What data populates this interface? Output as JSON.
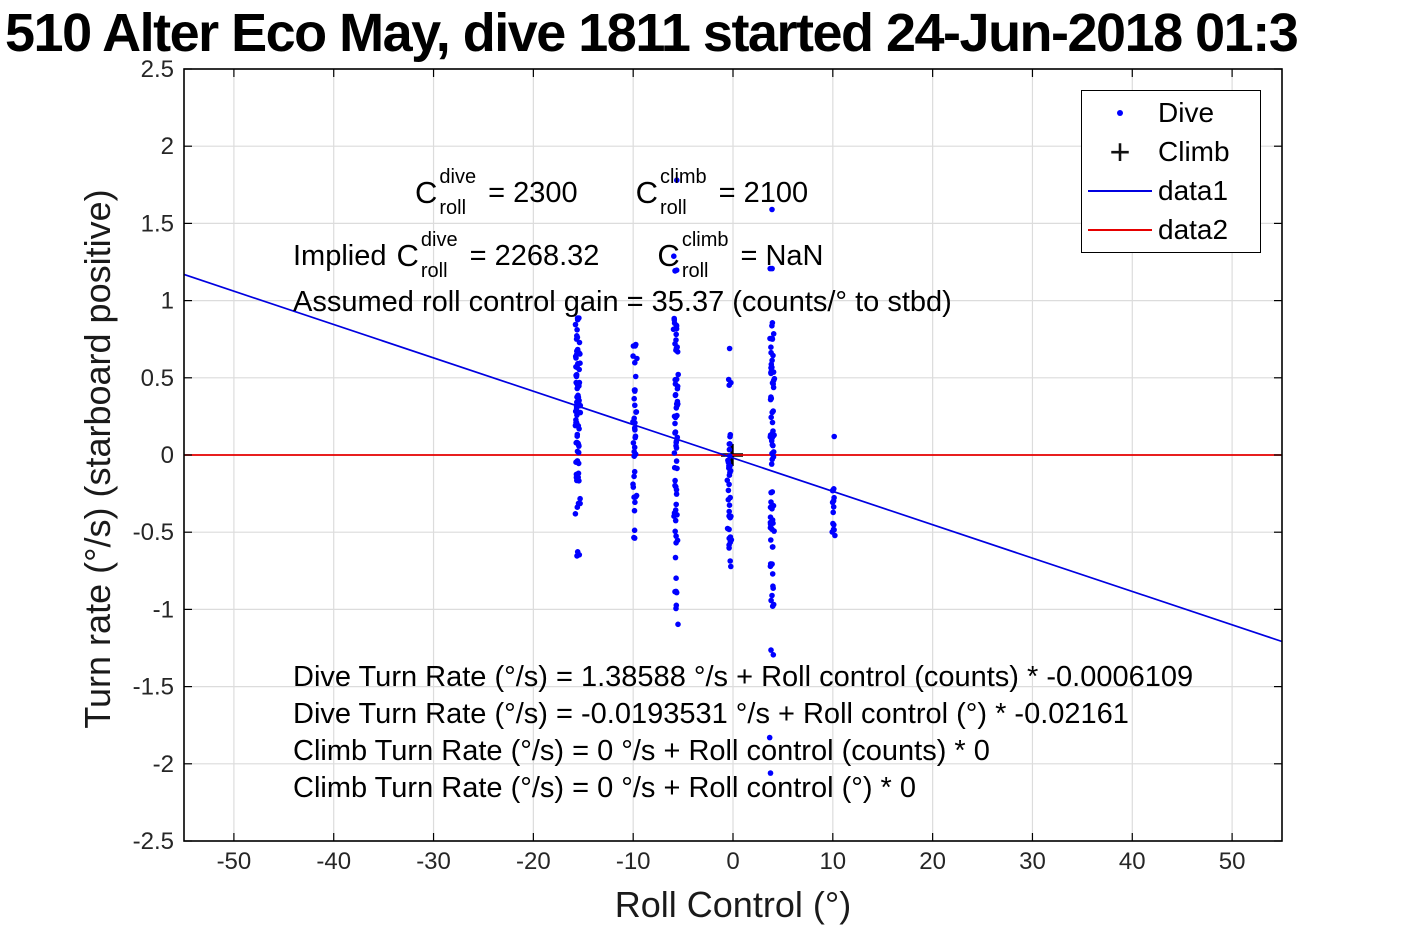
{
  "title": "510 Alter Eco May, dive 1811 started 24-Jun-2018 01:3",
  "axes": {
    "xlabel": "Roll Control (°)",
    "ylabel": "Turn rate (°/s) (starboard positive)"
  },
  "legend": {
    "items": [
      {
        "marker": "dot",
        "label": "Dive"
      },
      {
        "marker": "plus",
        "glyph": "+",
        "label": "Climb"
      },
      {
        "marker": "line-blue",
        "label": "data1"
      },
      {
        "marker": "line-red",
        "label": "data2"
      }
    ]
  },
  "annotations": {
    "coef_row1": {
      "term1": {
        "base": "C",
        "sup": "dive",
        "sub": "roll",
        "value": "= 2300"
      },
      "term2": {
        "base": "C",
        "sup": "climb",
        "sub": "roll",
        "value": "= 2100"
      }
    },
    "coef_row2": {
      "prefix": "Implied",
      "term1": {
        "base": "C",
        "sup": "dive",
        "sub": "roll",
        "value": "= 2268.32"
      },
      "term2": {
        "base": "C",
        "sup": "climb",
        "sub": "roll",
        "value": "= NaN"
      }
    },
    "gain_line": "Assumed roll control gain = 35.37 (counts/° to stbd)"
  },
  "fit_lines": [
    "Dive Turn Rate (°/s) = 1.38588 °/s + Roll control (counts) * -0.0006109",
    "Dive Turn Rate (°/s) = -0.0193531 °/s + Roll control (°) * -0.02161",
    "Climb Turn Rate (°/s) = 0 °/s + Roll control (counts) * 0",
    "Climb Turn Rate (°/s) = 0 °/s + Roll control (°) * 0"
  ],
  "colors": {
    "dive_marker": "#0000ff",
    "climb_marker": "#000000",
    "data1_line": "#0000e0",
    "data2_line": "#e60000",
    "grid": "#dcdcdc",
    "axis": "#000000",
    "tick_label": "#262626",
    "background": "#ffffff"
  },
  "chart_data": {
    "type": "scatter",
    "title": "510 Alter Eco May, dive 1811 started 24-Jun-2018 01:3",
    "xlabel": "Roll Control (°)",
    "ylabel": "Turn rate (°/s) (starboard positive)",
    "xlim": [
      -55,
      55
    ],
    "ylim": [
      -2.5,
      2.5
    ],
    "grid": true,
    "x_tick_values": [
      -50,
      -40,
      -30,
      -20,
      -10,
      0,
      10,
      20,
      30,
      40,
      50
    ],
    "x_tick_labels": [
      "-50",
      "-40",
      "-30",
      "-20",
      "-10",
      "0",
      "10",
      "20",
      "30",
      "40",
      "50"
    ],
    "y_tick_values": [
      -2.5,
      -2,
      -1.5,
      -1,
      -0.5,
      0,
      0.5,
      1,
      1.5,
      2,
      2.5
    ],
    "y_tick_labels": [
      "-2.5",
      "-2",
      "-1.5",
      "-1",
      "-0.5",
      "0",
      "0.5",
      "1",
      "1.5",
      "2",
      "2.5"
    ],
    "series": [
      {
        "name": "Dive",
        "type": "scatter",
        "marker": "dot",
        "color": "#0000ff",
        "clusters": [
          {
            "x": -15.55,
            "jitter": 0.16,
            "segments": [
              [
                0.9,
                0.7,
                9
              ],
              [
                0.7,
                0.42,
                22
              ],
              [
                0.42,
                0.15,
                22
              ],
              [
                0.15,
                -0.18,
                19
              ],
              [
                -0.25,
                -0.45,
                5
              ],
              [
                -0.54,
                -0.66,
                3
              ]
            ]
          },
          {
            "x": -9.85,
            "jitter": 0.13,
            "segments": [
              [
                0.73,
                0.5,
                7
              ],
              [
                0.5,
                0.15,
                12
              ],
              [
                0.15,
                -0.15,
                9
              ],
              [
                -0.15,
                -0.38,
                7
              ],
              [
                -0.45,
                -0.56,
                3
              ]
            ]
          },
          {
            "x": -5.7,
            "jitter": 0.14,
            "segments": [
              [
                1.78,
                1.78,
                1
              ],
              [
                1.42,
                1.05,
                4
              ],
              [
                0.9,
                0.55,
                14
              ],
              [
                0.55,
                0.2,
                17
              ],
              [
                0.2,
                -0.2,
                14
              ],
              [
                -0.2,
                -0.6,
                14
              ],
              [
                -0.65,
                -1.1,
                8
              ]
            ]
          },
          {
            "x": -0.35,
            "jitter": 0.12,
            "segments": [
              [
                0.69,
                0.69,
                1
              ],
              [
                0.5,
                0.33,
                3
              ],
              [
                0.17,
                -0.05,
                8
              ],
              [
                -0.05,
                -0.35,
                12
              ],
              [
                -0.35,
                -0.62,
                12
              ],
              [
                -0.68,
                -0.76,
                2
              ]
            ]
          },
          {
            "x": 3.9,
            "jitter": 0.14,
            "segments": [
              [
                1.59,
                1.59,
                1
              ],
              [
                1.32,
                1.18,
                2
              ],
              [
                0.88,
                0.55,
                14
              ],
              [
                0.55,
                0.15,
                17
              ],
              [
                0.15,
                -0.25,
                16
              ],
              [
                -0.25,
                -0.65,
                16
              ],
              [
                -0.7,
                -1.07,
                10
              ],
              [
                -1.25,
                -1.33,
                2
              ],
              [
                -1.83,
                -1.83,
                1
              ],
              [
                -2.06,
                -2.06,
                1
              ]
            ]
          },
          {
            "x": 10.05,
            "jitter": 0.1,
            "segments": [
              [
                0.12,
                0.12,
                1
              ],
              [
                -0.16,
                -0.4,
                8
              ],
              [
                -0.4,
                -0.6,
                6
              ]
            ]
          }
        ]
      },
      {
        "name": "Climb",
        "type": "scatter",
        "marker": "plus",
        "color": "#000000",
        "points": [
          [
            -0.1,
            0.0
          ]
        ]
      },
      {
        "name": "data1",
        "type": "line",
        "color": "#0000e0",
        "line_fit": {
          "intercept": -0.0193531,
          "slope": -0.02161
        },
        "x_span": [
          -55,
          55
        ]
      },
      {
        "name": "data2",
        "type": "line",
        "color": "#e60000",
        "line_fit": {
          "intercept": 0,
          "slope": 0
        },
        "x_span": [
          -55,
          55
        ]
      }
    ]
  }
}
